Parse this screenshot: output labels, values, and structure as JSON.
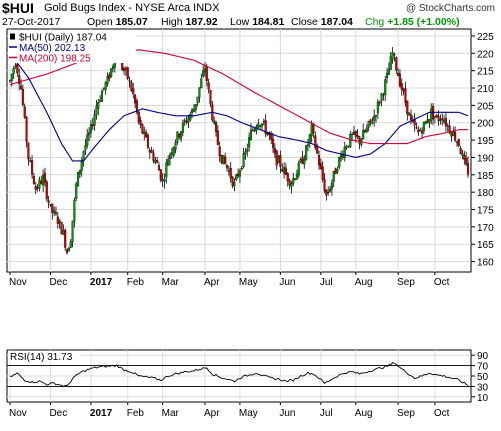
{
  "header": {
    "ticker": "$HUI",
    "title": "Gold Bugs Index - NYSE Arca INDX",
    "brand": "@ StockCharts.com",
    "date": "27-Oct-2017",
    "open_label": "Open",
    "open": "185.07",
    "high_label": "High",
    "high": "187.92",
    "low_label": "Low",
    "low": "184.81",
    "close_label": "Close",
    "close": "187.04",
    "chg_label": "Chg",
    "chg": "+1.85 (+1.00%)",
    "colors": {
      "up": "#009900",
      "down": "#cc0000"
    }
  },
  "chart_data": [
    {
      "type": "candlestick",
      "legend": [
        {
          "label": "$HUI (Daily) 187.04",
          "color": "#000000"
        },
        {
          "label": "MA(50) 202.13",
          "color": "#000088"
        },
        {
          "label": "MA(200) 198.25",
          "color": "#cc0033"
        }
      ],
      "ylim": [
        157,
        227
      ],
      "y_ticks": [
        160,
        165,
        170,
        175,
        180,
        185,
        190,
        195,
        200,
        205,
        210,
        215,
        220,
        225
      ],
      "x_months": [
        {
          "label": "Nov",
          "day": 0
        },
        {
          "label": "Dec",
          "day": 22
        },
        {
          "label": "2017",
          "day": 44,
          "bold": true
        },
        {
          "label": "Feb",
          "day": 64
        },
        {
          "label": "Mar",
          "day": 83
        },
        {
          "label": "Apr",
          "day": 106
        },
        {
          "label": "May",
          "day": 125
        },
        {
          "label": "Jun",
          "day": 147
        },
        {
          "label": "Jul",
          "day": 169
        },
        {
          "label": "Aug",
          "day": 188
        },
        {
          "label": "Sep",
          "day": 211
        },
        {
          "label": "Oct",
          "day": 231
        }
      ],
      "price_keypoints": [
        [
          0,
          212
        ],
        [
          3,
          218
        ],
        [
          6,
          210
        ],
        [
          10,
          190
        ],
        [
          14,
          181
        ],
        [
          18,
          184
        ],
        [
          22,
          175
        ],
        [
          26,
          172
        ],
        [
          29,
          168
        ],
        [
          31,
          163
        ],
        [
          33,
          167
        ],
        [
          36,
          182
        ],
        [
          40,
          192
        ],
        [
          44,
          198
        ],
        [
          47,
          205
        ],
        [
          50,
          209
        ],
        [
          53,
          212
        ],
        [
          56,
          217
        ],
        [
          58,
          222
        ],
        [
          61,
          216
        ],
        [
          64,
          213
        ],
        [
          67,
          208
        ],
        [
          70,
          200
        ],
        [
          73,
          196
        ],
        [
          76,
          192
        ],
        [
          80,
          188
        ],
        [
          83,
          183
        ],
        [
          86,
          190
        ],
        [
          90,
          195
        ],
        [
          95,
          200
        ],
        [
          100,
          204
        ],
        [
          103,
          210
        ],
        [
          106,
          216
        ],
        [
          109,
          205
        ],
        [
          112,
          196
        ],
        [
          115,
          190
        ],
        [
          119,
          186
        ],
        [
          122,
          182
        ],
        [
          125,
          187
        ],
        [
          128,
          191
        ],
        [
          131,
          197
        ],
        [
          135,
          201
        ],
        [
          138,
          199
        ],
        [
          141,
          196
        ],
        [
          144,
          190
        ],
        [
          147,
          188
        ],
        [
          150,
          185
        ],
        [
          153,
          183
        ],
        [
          157,
          187
        ],
        [
          161,
          192
        ],
        [
          164,
          198
        ],
        [
          167,
          191
        ],
        [
          169,
          186
        ],
        [
          172,
          179
        ],
        [
          175,
          183
        ],
        [
          178,
          188
        ],
        [
          182,
          193
        ],
        [
          186,
          196
        ],
        [
          190,
          195
        ],
        [
          194,
          198
        ],
        [
          198,
          202
        ],
        [
          202,
          208
        ],
        [
          205,
          213
        ],
        [
          208,
          220
        ],
        [
          211,
          214
        ],
        [
          214,
          208
        ],
        [
          218,
          200
        ],
        [
          222,
          197
        ],
        [
          226,
          200
        ],
        [
          229,
          203
        ],
        [
          232,
          201
        ],
        [
          235,
          202
        ],
        [
          238,
          199
        ],
        [
          241,
          197
        ],
        [
          244,
          194
        ],
        [
          247,
          188
        ],
        [
          249,
          186
        ]
      ],
      "ma50_keypoints": [
        [
          0,
          220
        ],
        [
          10,
          213
        ],
        [
          20,
          203
        ],
        [
          28,
          194
        ],
        [
          34,
          189
        ],
        [
          40,
          189
        ],
        [
          46,
          193
        ],
        [
          54,
          198
        ],
        [
          62,
          202
        ],
        [
          72,
          204
        ],
        [
          80,
          203
        ],
        [
          90,
          202
        ],
        [
          100,
          202
        ],
        [
          110,
          203
        ],
        [
          118,
          202
        ],
        [
          126,
          200
        ],
        [
          136,
          198
        ],
        [
          146,
          196
        ],
        [
          156,
          195
        ],
        [
          164,
          194
        ],
        [
          172,
          192
        ],
        [
          180,
          191
        ],
        [
          188,
          190
        ],
        [
          196,
          191
        ],
        [
          204,
          194
        ],
        [
          212,
          199
        ],
        [
          220,
          201
        ],
        [
          228,
          203
        ],
        [
          236,
          203
        ],
        [
          244,
          203
        ],
        [
          249,
          202
        ]
      ],
      "ma200_keypoints": [
        [
          0,
          211
        ],
        [
          20,
          214
        ],
        [
          40,
          218
        ],
        [
          56,
          220
        ],
        [
          70,
          221
        ],
        [
          84,
          220
        ],
        [
          100,
          218
        ],
        [
          116,
          214
        ],
        [
          132,
          209
        ],
        [
          146,
          205
        ],
        [
          160,
          201
        ],
        [
          174,
          197
        ],
        [
          186,
          195
        ],
        [
          196,
          194
        ],
        [
          206,
          194
        ],
        [
          216,
          194
        ],
        [
          226,
          196
        ],
        [
          236,
          197
        ],
        [
          244,
          198
        ],
        [
          249,
          198
        ]
      ]
    },
    {
      "type": "line",
      "legend": [
        {
          "label": "RSI(14) 31.73",
          "color": "#000000"
        }
      ],
      "ylim": [
        0,
        100
      ],
      "y_ticks": [
        10,
        30,
        50,
        70,
        90
      ],
      "ref_lines": [
        30,
        70
      ],
      "rsi_keypoints": [
        [
          0,
          48
        ],
        [
          4,
          55
        ],
        [
          8,
          42
        ],
        [
          12,
          38
        ],
        [
          16,
          40
        ],
        [
          20,
          34
        ],
        [
          24,
          36
        ],
        [
          28,
          32
        ],
        [
          31,
          30
        ],
        [
          34,
          45
        ],
        [
          38,
          56
        ],
        [
          42,
          62
        ],
        [
          46,
          66
        ],
        [
          50,
          68
        ],
        [
          54,
          69
        ],
        [
          58,
          70
        ],
        [
          62,
          62
        ],
        [
          66,
          58
        ],
        [
          70,
          50
        ],
        [
          74,
          48
        ],
        [
          78,
          46
        ],
        [
          82,
          42
        ],
        [
          86,
          50
        ],
        [
          90,
          54
        ],
        [
          95,
          58
        ],
        [
          100,
          60
        ],
        [
          104,
          64
        ],
        [
          107,
          66
        ],
        [
          110,
          54
        ],
        [
          114,
          48
        ],
        [
          118,
          44
        ],
        [
          122,
          40
        ],
        [
          126,
          48
        ],
        [
          130,
          52
        ],
        [
          134,
          56
        ],
        [
          138,
          50
        ],
        [
          142,
          46
        ],
        [
          146,
          44
        ],
        [
          150,
          40
        ],
        [
          154,
          42
        ],
        [
          158,
          50
        ],
        [
          162,
          56
        ],
        [
          165,
          54
        ],
        [
          168,
          46
        ],
        [
          171,
          36
        ],
        [
          174,
          42
        ],
        [
          178,
          50
        ],
        [
          182,
          56
        ],
        [
          186,
          58
        ],
        [
          190,
          54
        ],
        [
          194,
          58
        ],
        [
          198,
          62
        ],
        [
          202,
          66
        ],
        [
          206,
          70
        ],
        [
          209,
          76
        ],
        [
          212,
          66
        ],
        [
          216,
          56
        ],
        [
          220,
          46
        ],
        [
          224,
          50
        ],
        [
          228,
          56
        ],
        [
          232,
          52
        ],
        [
          236,
          50
        ],
        [
          240,
          46
        ],
        [
          244,
          42
        ],
        [
          247,
          36
        ],
        [
          249,
          32
        ]
      ]
    }
  ]
}
